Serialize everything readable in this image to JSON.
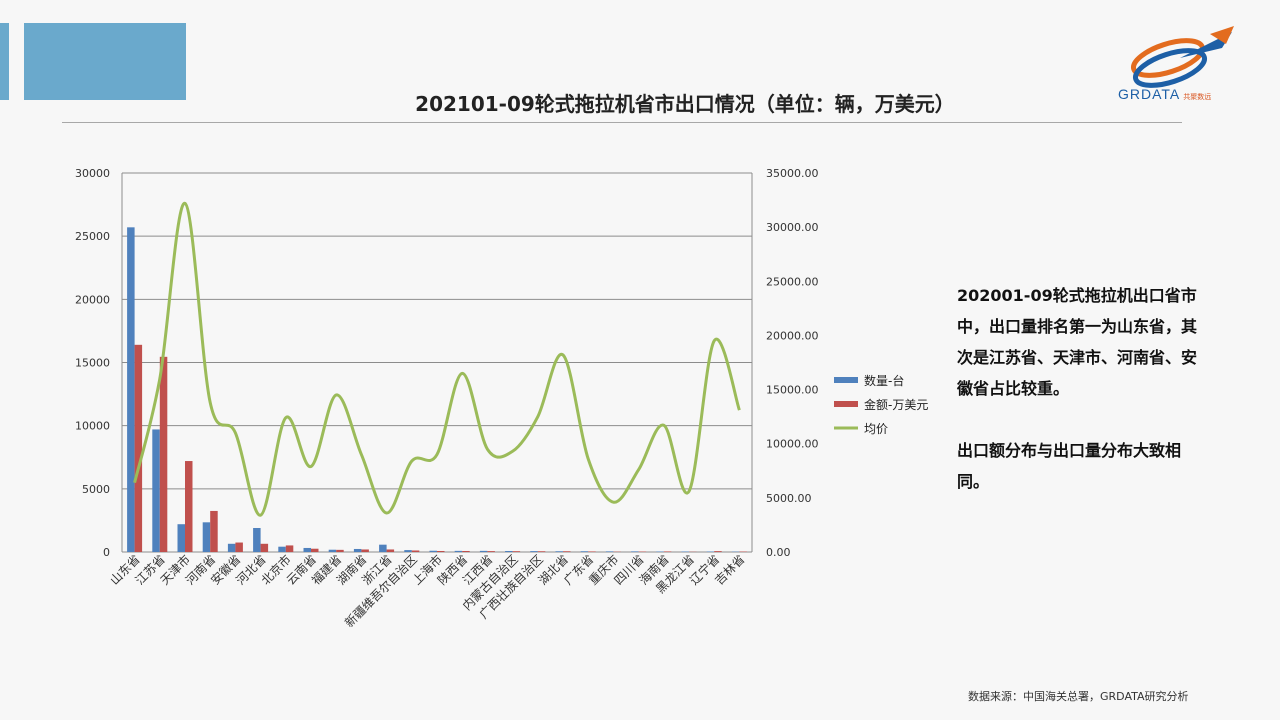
{
  "slide": {
    "title": "202101-09轮式拖拉机省市出口情况（单位：辆，万美元）",
    "summary_1": "202001-09轮式拖拉机出口省市中，出口量排名第一为山东省，其次是江苏省、天津市、河南省、安徽省占比较重。",
    "summary_2": "出口额分布与出口量分布大致相同。",
    "source": "数据来源：中国海关总署，GRDATA研究分析",
    "logo_text": "GRDATA",
    "logo_subtext": "共聚数远",
    "logo_icon": "globe-arrow-logo",
    "colors": {
      "accent": "#6aa9cc",
      "quantity": "#4f81bd",
      "amount": "#c0504d",
      "price": "#9bbb59"
    }
  },
  "chart_data": {
    "type": "bar",
    "categories": [
      "山东省",
      "江苏省",
      "天津市",
      "河南省",
      "安徽省",
      "河北省",
      "北京市",
      "云南省",
      "福建省",
      "湖南省",
      "浙江省",
      "新疆维吾尔自治区",
      "上海市",
      "陕西省",
      "江西省",
      "内蒙古自治区",
      "广西壮族自治区",
      "湖北省",
      "广东省",
      "重庆市",
      "四川省",
      "海南省",
      "黑龙江省",
      "辽宁省",
      "吉林省"
    ],
    "series": [
      {
        "name": "数量-台",
        "type": "bar",
        "axis": "left",
        "values": [
          25700,
          9700,
          2200,
          2350,
          650,
          1900,
          420,
          320,
          180,
          240,
          580,
          150,
          100,
          90,
          90,
          80,
          70,
          60,
          60,
          50,
          50,
          40,
          40,
          40,
          30
        ]
      },
      {
        "name": "金额-万美元",
        "type": "bar",
        "axis": "left",
        "values": [
          16400,
          15450,
          7200,
          3250,
          750,
          650,
          520,
          260,
          170,
          200,
          200,
          120,
          80,
          80,
          70,
          65,
          60,
          60,
          45,
          25,
          35,
          45,
          20,
          70,
          35
        ]
      },
      {
        "name": "均价",
        "type": "line",
        "axis": "right",
        "values": [
          6400,
          16000,
          32200,
          13800,
          11000,
          3400,
          12400,
          7900,
          14500,
          9000,
          3600,
          8400,
          9000,
          16500,
          9500,
          9300,
          12500,
          18200,
          8600,
          4600,
          7600,
          11700,
          5600,
          19500,
          13100
        ]
      }
    ],
    "y_left_ticks": [
      "30000",
      "25000",
      "20000",
      "15000",
      "10000",
      "5000",
      "0"
    ],
    "y_right_ticks": [
      "35000.00",
      "30000.00",
      "25000.00",
      "20000.00",
      "15000.00",
      "10000.00",
      "5000.00",
      "0.00"
    ],
    "ylim_left": [
      0,
      30000
    ],
    "ylim_right": [
      0,
      35000
    ],
    "grid": true,
    "legend_position": "right"
  }
}
